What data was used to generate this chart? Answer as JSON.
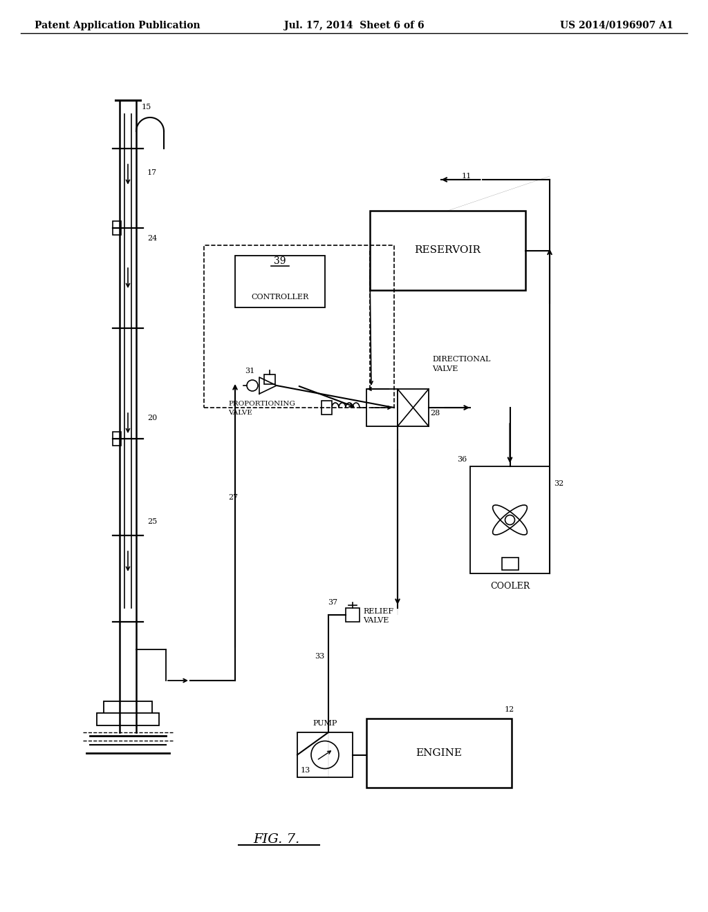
{
  "background_color": "#ffffff",
  "header_left": "Patent Application Publication",
  "header_center": "Jul. 17, 2014  Sheet 6 of 6",
  "header_right": "US 2014/0196907 A1",
  "figure_label": "FIG. 7.",
  "title_fontsize": 10,
  "label_fontsize": 9,
  "component_fontsize": 8,
  "number_fontsize": 8
}
